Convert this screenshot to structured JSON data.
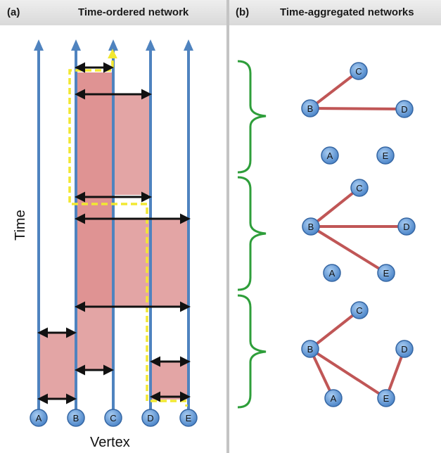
{
  "panel_a": {
    "letter": "(a)",
    "title": "Time-ordered network"
  },
  "panel_b": {
    "letter": "(b)",
    "title": "Time-aggregated networks"
  },
  "axes": {
    "y_label": "Time",
    "x_label": "Vertex"
  },
  "vertices": [
    "A",
    "B",
    "C",
    "D",
    "E"
  ],
  "colors": {
    "timeline": "#4f83bf",
    "node_fill": "#6fa3dd",
    "node_stroke": "#3566a3",
    "contact_fill": "#d98080",
    "arrow": "#111111",
    "path": "#f2e832",
    "edge": "#c05656",
    "brace": "#2e9e3a",
    "header": "#dcdcdc"
  },
  "aggregated_networks": [
    {
      "nodes": [
        "A",
        "B",
        "C",
        "D",
        "E"
      ],
      "edges": [
        [
          "B",
          "C"
        ],
        [
          "B",
          "D"
        ]
      ]
    },
    {
      "nodes": [
        "A",
        "B",
        "C",
        "D",
        "E"
      ],
      "edges": [
        [
          "B",
          "C"
        ],
        [
          "B",
          "D"
        ],
        [
          "B",
          "E"
        ]
      ]
    },
    {
      "nodes": [
        "A",
        "B",
        "C",
        "D",
        "E"
      ],
      "edges": [
        [
          "B",
          "C"
        ],
        [
          "B",
          "A"
        ],
        [
          "B",
          "E"
        ],
        [
          "E",
          "D"
        ]
      ]
    }
  ]
}
